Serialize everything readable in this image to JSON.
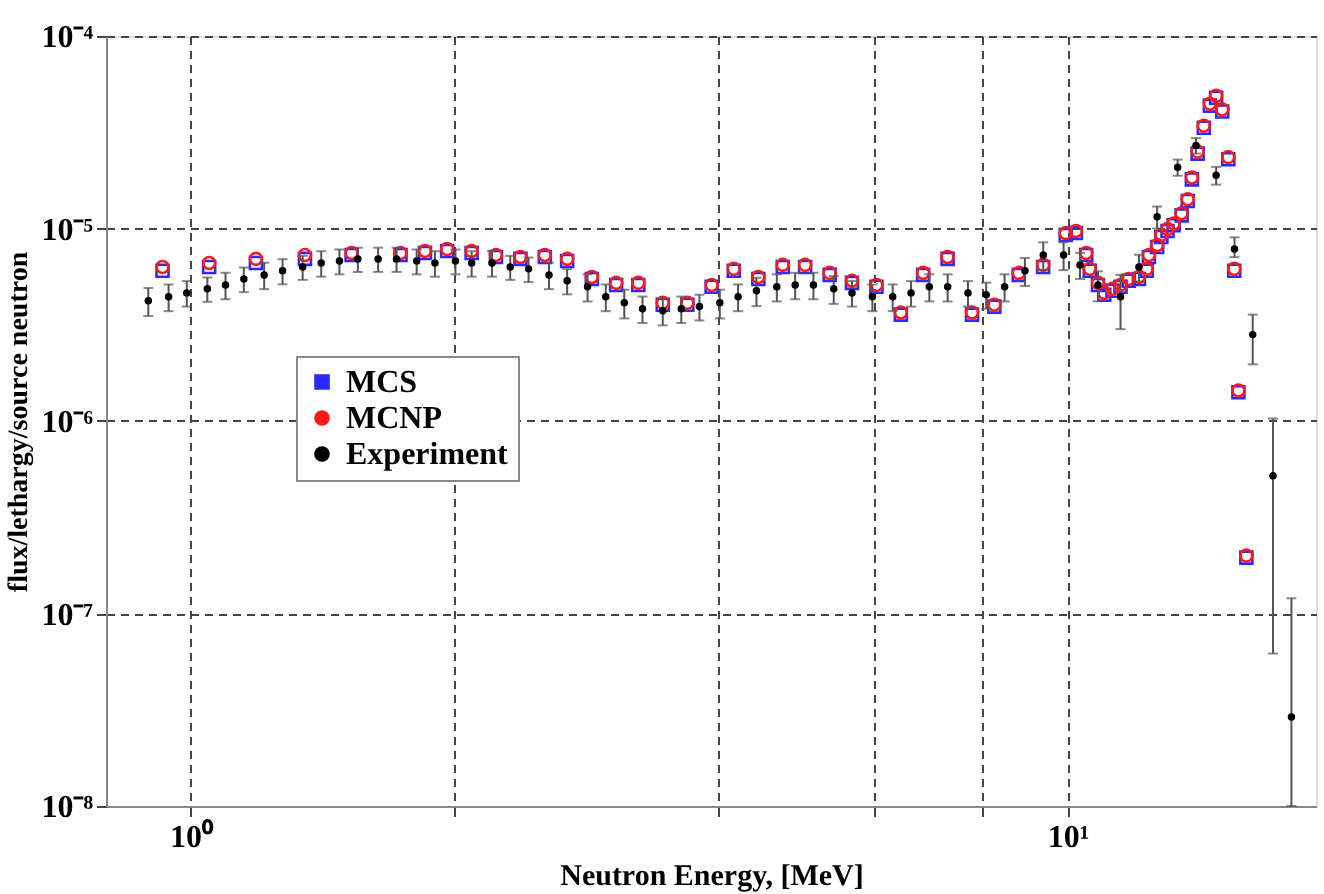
{
  "chart_data": {
    "type": "scatter",
    "xlabel": "Neutron Energy, [MeV]",
    "ylabel": "flux/lethargy/source neutron",
    "log": "xy",
    "grid": true,
    "legend": "left",
    "xlim": [
      0.8,
      19.2
    ],
    "xticks": [
      {
        "value": 1,
        "label": "10⁰"
      },
      {
        "value": 2,
        "label": null
      },
      {
        "value": 4,
        "label": null
      },
      {
        "value": 6,
        "label": null
      },
      {
        "value": 8,
        "label": null
      },
      {
        "value": 10,
        "label": "10¹"
      }
    ],
    "ylim": [
      1e-08,
      0.0001
    ],
    "yticks": [
      {
        "value": 1e-08,
        "label": "10⁻⁸"
      },
      {
        "value": 1e-07,
        "label": "10⁻⁷"
      },
      {
        "value": 1e-06,
        "label": "10⁻⁶"
      },
      {
        "value": 1e-05,
        "label": "10⁻⁵"
      },
      {
        "value": 0.0001,
        "label": "10⁻⁴"
      }
    ],
    "series": [
      {
        "name": "MCS",
        "color": "#2b2bff",
        "marker": "square",
        "x": [
          0.928,
          1.049,
          1.186,
          1.349,
          1.525,
          1.734,
          1.849,
          1.96,
          2.09,
          2.228,
          2.376,
          2.533,
          2.686,
          2.866,
          3.055,
          3.238,
          3.453,
          3.683,
          3.926,
          4.161,
          4.438,
          4.732,
          5.018,
          5.353,
          5.675,
          6.052,
          6.453,
          6.842,
          7.296,
          7.78,
          8.248,
          8.795,
          9.377,
          9.95,
          10.22,
          10.5,
          10.6,
          10.83,
          11.01,
          11.25,
          11.49,
          11.74,
          12.06,
          12.31,
          12.38,
          12.65,
          12.79,
          13.0,
          13.21,
          13.49,
          13.71,
          13.86,
          14.07,
          14.3,
          14.53,
          14.77,
          15.01,
          15.25,
          15.49,
          15.66,
          15.99
        ],
        "values": [
          6.03e-06,
          6.31e-06,
          6.62e-06,
          6.95e-06,
          7.28e-06,
          7.28e-06,
          7.46e-06,
          7.64e-06,
          7.46e-06,
          7.11e-06,
          6.95e-06,
          7.11e-06,
          6.78e-06,
          5.47e-06,
          5.09e-06,
          5.09e-06,
          4.02e-06,
          4.02e-06,
          4.98e-06,
          6.03e-06,
          5.47e-06,
          6.31e-06,
          6.31e-06,
          5.74e-06,
          5.22e-06,
          4.98e-06,
          3.57e-06,
          5.74e-06,
          6.95e-06,
          3.57e-06,
          3.93e-06,
          5.74e-06,
          6.31e-06,
          9.25e-06,
          9.47e-06,
          7.28e-06,
          6.03e-06,
          5.09e-06,
          4.53e-06,
          4.75e-06,
          4.98e-06,
          5.35e-06,
          5.47e-06,
          6.03e-06,
          7.11e-06,
          8.01e-06,
          9.04e-06,
          9.7e-06,
          1.04e-05,
          1.17e-05,
          1.39e-05,
          1.8e-05,
          2.45e-05,
          3.34e-05,
          4.35e-05,
          4.78e-05,
          4.05e-05,
          2.29e-05,
          6.03e-06,
          1.41e-06,
          1.95e-07
        ]
      },
      {
        "name": "MCNP",
        "color": "#ff1a1a",
        "marker": "circle",
        "x": [
          0.928,
          1.049,
          1.186,
          1.349,
          1.525,
          1.734,
          1.849,
          1.96,
          2.09,
          2.228,
          2.376,
          2.533,
          2.686,
          2.866,
          3.055,
          3.238,
          3.453,
          3.683,
          3.926,
          4.161,
          4.438,
          4.732,
          5.018,
          5.353,
          5.675,
          6.052,
          6.453,
          6.842,
          7.296,
          7.78,
          8.248,
          8.795,
          9.377,
          9.95,
          10.22,
          10.5,
          10.6,
          10.83,
          11.01,
          11.25,
          11.49,
          11.74,
          12.06,
          12.31,
          12.38,
          12.65,
          12.79,
          13.0,
          13.21,
          13.49,
          13.71,
          13.86,
          14.07,
          14.3,
          14.53,
          14.77,
          15.01,
          15.25,
          15.49,
          15.66,
          15.99
        ],
        "values": [
          6.31e-06,
          6.62e-06,
          6.95e-06,
          7.28e-06,
          7.46e-06,
          7.46e-06,
          7.64e-06,
          7.82e-06,
          7.64e-06,
          7.28e-06,
          7.11e-06,
          7.28e-06,
          6.95e-06,
          5.6e-06,
          5.22e-06,
          5.22e-06,
          4.11e-06,
          4.11e-06,
          5.09e-06,
          6.17e-06,
          5.6e-06,
          6.47e-06,
          6.47e-06,
          5.88e-06,
          5.35e-06,
          5.09e-06,
          3.66e-06,
          5.88e-06,
          7.11e-06,
          3.66e-06,
          4.02e-06,
          5.88e-06,
          6.47e-06,
          9.47e-06,
          9.7e-06,
          7.46e-06,
          6.17e-06,
          5.22e-06,
          4.63e-06,
          4.86e-06,
          5.09e-06,
          5.47e-06,
          5.6e-06,
          6.17e-06,
          7.28e-06,
          8.2e-06,
          9.25e-06,
          9.93e-06,
          1.06e-05,
          1.2e-05,
          1.42e-05,
          1.84e-05,
          2.51e-05,
          3.42e-05,
          4.45e-05,
          4.89e-05,
          4.15e-05,
          2.35e-05,
          6.17e-06,
          1.44e-06,
          2e-07
        ]
      },
      {
        "name": "Experiment",
        "color": "#000000",
        "marker": "circle",
        "x": [
          0.894,
          0.943,
          0.989,
          1.044,
          1.095,
          1.149,
          1.212,
          1.272,
          1.341,
          1.408,
          1.477,
          1.55,
          1.635,
          1.716,
          1.809,
          1.898,
          2.003,
          2.09,
          2.205,
          2.313,
          2.427,
          2.561,
          2.686,
          2.834,
          2.973,
          3.121,
          3.274,
          3.453,
          3.625,
          3.802,
          4.011,
          4.208,
          4.416,
          4.659,
          4.889,
          5.129,
          5.41,
          5.676,
          5.988,
          6.316,
          6.628,
          6.954,
          7.297,
          7.697,
          8.074,
          8.474,
          8.939,
          9.38,
          9.894,
          10.33,
          10.83,
          11.49,
          12.06,
          12.65,
          13.35,
          14.01,
          14.77,
          15.5,
          16.26,
          17.15,
          18.0
        ],
        "values": [
          4.21e-06,
          4.42e-06,
          4.63e-06,
          4.86e-06,
          5.09e-06,
          5.47e-06,
          5.74e-06,
          6.03e-06,
          6.31e-06,
          6.62e-06,
          6.78e-06,
          6.95e-06,
          6.95e-06,
          6.95e-06,
          6.78e-06,
          6.62e-06,
          6.78e-06,
          6.62e-06,
          6.62e-06,
          6.31e-06,
          6.17e-06,
          5.74e-06,
          5.35e-06,
          4.98e-06,
          4.42e-06,
          4.11e-06,
          3.83e-06,
          3.74e-06,
          3.83e-06,
          3.93e-06,
          4.11e-06,
          4.42e-06,
          4.75e-06,
          4.98e-06,
          5.09e-06,
          5.09e-06,
          4.86e-06,
          4.63e-06,
          4.42e-06,
          4.42e-06,
          4.63e-06,
          4.98e-06,
          4.98e-06,
          4.63e-06,
          4.53e-06,
          4.98e-06,
          6.03e-06,
          7.28e-06,
          7.28e-06,
          6.47e-06,
          5.09e-06,
          4.42e-06,
          6.31e-06,
          1.15e-05,
          2.08e-05,
          2.7e-05,
          1.89e-05,
          7.82e-06,
          2.81e-06,
          5.19e-07,
          2.9e-08
        ],
        "errors": [
          7e-07,
          7e-07,
          7e-07,
          7e-07,
          8e-07,
          8e-07,
          9e-07,
          9e-07,
          9e-07,
          1e-06,
          1e-06,
          1e-06,
          1e-06,
          1e-06,
          1e-06,
          1e-06,
          1e-06,
          1e-06,
          1e-06,
          9e-07,
          9e-07,
          9e-07,
          8e-07,
          8e-07,
          7e-07,
          7e-07,
          6e-07,
          6e-07,
          6e-07,
          6e-07,
          7e-07,
          7e-07,
          8e-07,
          8e-07,
          8e-07,
          8e-07,
          8e-07,
          7e-07,
          7e-07,
          7e-07,
          7e-07,
          8e-07,
          8e-07,
          7e-07,
          7e-07,
          8e-07,
          1e-06,
          1.2e-06,
          1.2e-06,
          1e-06,
          9e-07,
          [
            3e-06,
            5.74e-06
          ],
          1e-06,
          1.5e-06,
          2e-06,
          2.5e-06,
          2e-06,
          [
            7.1e-06,
            9e-06
          ],
          [
            1.97e-06,
            3.57e-06
          ],
          [
            6.2e-08,
            1.03e-06
          ],
          [
            1e-08,
            1.2e-07
          ]
        ]
      }
    ]
  }
}
